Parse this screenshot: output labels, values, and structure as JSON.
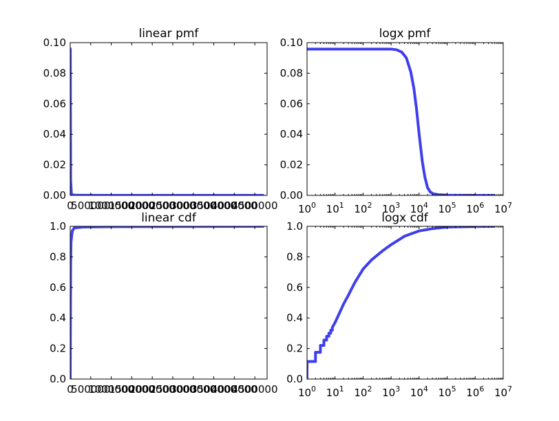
{
  "colors": {
    "series": "#3434ee",
    "axes": "#000000",
    "background": "#ffffff"
  },
  "chart_data": [
    {
      "id": "linear-pmf",
      "type": "line",
      "title": "linear pmf",
      "xscale": "linear",
      "xlim": [
        0,
        4800000
      ],
      "ylim": [
        0,
        0.1
      ],
      "xticks": [
        {
          "value": 0,
          "label": "0"
        },
        {
          "value": 500000,
          "label": "500000"
        },
        {
          "value": 1000000,
          "label": "1000000"
        },
        {
          "value": 1500000,
          "label": "1500000"
        },
        {
          "value": 2000000,
          "label": "2000000"
        },
        {
          "value": 2500000,
          "label": "2500000"
        },
        {
          "value": 3000000,
          "label": "3000000"
        },
        {
          "value": 3500000,
          "label": "3500000"
        },
        {
          "value": 4000000,
          "label": "4000000"
        },
        {
          "value": 4500000,
          "label": "4500000"
        }
      ],
      "yticks": [
        {
          "value": 0,
          "label": "0.00"
        },
        {
          "value": 0.02,
          "label": "0.02"
        },
        {
          "value": 0.04,
          "label": "0.04"
        },
        {
          "value": 0.06,
          "label": "0.06"
        },
        {
          "value": 0.08,
          "label": "0.08"
        },
        {
          "value": 0.1,
          "label": "0.10"
        }
      ],
      "series": [
        {
          "x": [
            1,
            2000,
            5000,
            10000,
            30000,
            100000,
            1000000,
            4700000
          ],
          "y": [
            0.096,
            0.095,
            0.06,
            0.01,
            0.0005,
            0.0001,
            2e-05,
            1e-05
          ]
        }
      ]
    },
    {
      "id": "logx-pmf",
      "type": "line",
      "title": "logx pmf",
      "xscale": "log",
      "xlim": [
        1,
        10000000
      ],
      "ylim": [
        0,
        0.1
      ],
      "xticks": [
        {
          "value": 1,
          "base": "10",
          "exp": "0"
        },
        {
          "value": 10,
          "base": "10",
          "exp": "1"
        },
        {
          "value": 100,
          "base": "10",
          "exp": "2"
        },
        {
          "value": 1000,
          "base": "10",
          "exp": "3"
        },
        {
          "value": 10000,
          "base": "10",
          "exp": "4"
        },
        {
          "value": 100000,
          "base": "10",
          "exp": "5"
        },
        {
          "value": 1000000,
          "base": "10",
          "exp": "6"
        },
        {
          "value": 10000000,
          "base": "10",
          "exp": "7"
        }
      ],
      "yticks": [
        {
          "value": 0,
          "label": "0.00"
        },
        {
          "value": 0.02,
          "label": "0.02"
        },
        {
          "value": 0.04,
          "label": "0.04"
        },
        {
          "value": 0.06,
          "label": "0.06"
        },
        {
          "value": 0.08,
          "label": "0.08"
        },
        {
          "value": 0.1,
          "label": "0.10"
        }
      ],
      "series": [
        {
          "x": [
            1,
            10,
            100,
            1000,
            1600,
            2400,
            3500,
            5000,
            6500,
            8000,
            10000,
            13000,
            16000,
            20000,
            25000,
            32000,
            50000,
            100000,
            1000000,
            4700000
          ],
          "y": [
            0.0958,
            0.0958,
            0.0958,
            0.0958,
            0.0953,
            0.0938,
            0.09,
            0.081,
            0.07,
            0.057,
            0.04,
            0.022,
            0.012,
            0.005,
            0.0022,
            0.001,
            0.0004,
            0.0001,
            2e-05,
            1e-05
          ]
        }
      ]
    },
    {
      "id": "linear-cdf",
      "type": "line",
      "title": "linear cdf",
      "xscale": "linear",
      "xlim": [
        0,
        4800000
      ],
      "ylim": [
        0,
        1.0
      ],
      "xticks": [
        {
          "value": 0,
          "label": "0"
        },
        {
          "value": 500000,
          "label": "500000"
        },
        {
          "value": 1000000,
          "label": "1000000"
        },
        {
          "value": 1500000,
          "label": "1500000"
        },
        {
          "value": 2000000,
          "label": "2000000"
        },
        {
          "value": 2500000,
          "label": "2500000"
        },
        {
          "value": 3000000,
          "label": "3000000"
        },
        {
          "value": 3500000,
          "label": "3500000"
        },
        {
          "value": 4000000,
          "label": "4000000"
        },
        {
          "value": 4500000,
          "label": "4500000"
        }
      ],
      "yticks": [
        {
          "value": 0,
          "label": "0.0"
        },
        {
          "value": 0.2,
          "label": "0.2"
        },
        {
          "value": 0.4,
          "label": "0.4"
        },
        {
          "value": 0.6,
          "label": "0.6"
        },
        {
          "value": 0.8,
          "label": "0.8"
        },
        {
          "value": 1.0,
          "label": "1.0"
        }
      ],
      "series": [
        {
          "x": [
            1,
            10000,
            20000,
            50000,
            100000,
            300000,
            1000000,
            4700000
          ],
          "y": [
            0.0,
            0.75,
            0.9,
            0.97,
            0.99,
            0.995,
            0.998,
            1.0
          ]
        }
      ]
    },
    {
      "id": "logx-cdf",
      "type": "line",
      "title": "logx cdf",
      "xscale": "log",
      "xlim": [
        1,
        10000000
      ],
      "ylim": [
        0,
        1.0
      ],
      "xticks": [
        {
          "value": 1,
          "base": "10",
          "exp": "0"
        },
        {
          "value": 10,
          "base": "10",
          "exp": "1"
        },
        {
          "value": 100,
          "base": "10",
          "exp": "2"
        },
        {
          "value": 1000,
          "base": "10",
          "exp": "3"
        },
        {
          "value": 10000,
          "base": "10",
          "exp": "4"
        },
        {
          "value": 100000,
          "base": "10",
          "exp": "5"
        },
        {
          "value": 1000000,
          "base": "10",
          "exp": "6"
        },
        {
          "value": 10000000,
          "base": "10",
          "exp": "7"
        }
      ],
      "yticks": [
        {
          "value": 0,
          "label": "0.0"
        },
        {
          "value": 0.2,
          "label": "0.2"
        },
        {
          "value": 0.4,
          "label": "0.4"
        },
        {
          "value": 0.6,
          "label": "0.6"
        },
        {
          "value": 0.8,
          "label": "0.8"
        },
        {
          "value": 1.0,
          "label": "1.0"
        }
      ],
      "series": [
        {
          "x": [
            1,
            1,
            2,
            2,
            3,
            3,
            4,
            4,
            5,
            5,
            6,
            6,
            7,
            7,
            8,
            8,
            9,
            10,
            13,
            20,
            30,
            50,
            100,
            200,
            500,
            1000,
            3000,
            10000,
            30000,
            100000,
            1000000,
            4700000
          ],
          "y": [
            0.0,
            0.115,
            0.115,
            0.175,
            0.175,
            0.22,
            0.22,
            0.255,
            0.255,
            0.28,
            0.28,
            0.3,
            0.3,
            0.32,
            0.32,
            0.338,
            0.355,
            0.37,
            0.415,
            0.49,
            0.55,
            0.63,
            0.72,
            0.78,
            0.84,
            0.88,
            0.935,
            0.97,
            0.985,
            0.995,
            0.999,
            1.0
          ]
        }
      ]
    }
  ]
}
